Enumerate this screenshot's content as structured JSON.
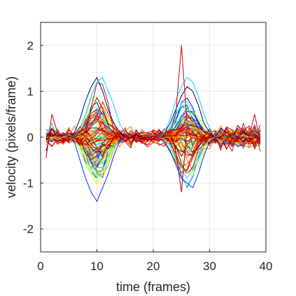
{
  "chart_data": {
    "type": "line",
    "title": "",
    "xlabel": "time (frames)",
    "ylabel": "velocity (pixels/frame)",
    "xlim": [
      0,
      40
    ],
    "ylim": [
      -2.5,
      2.5
    ],
    "xticks": [
      0,
      10,
      20,
      30,
      40
    ],
    "yticks": [
      -2,
      -1,
      0,
      1,
      2
    ],
    "grid": true,
    "legend": "none",
    "colormap": [
      "#00007f",
      "#0000ff",
      "#007fff",
      "#00ffff",
      "#7fff7f",
      "#ffff00",
      "#ff7f00",
      "#ff0000",
      "#7f0000"
    ],
    "series_count": 90,
    "x": [
      1,
      2,
      3,
      4,
      5,
      6,
      7,
      8,
      9,
      10,
      11,
      12,
      13,
      14,
      15,
      16,
      17,
      18,
      19,
      20,
      21,
      22,
      23,
      24,
      25,
      26,
      27,
      28,
      29,
      30,
      31,
      32,
      33,
      34,
      35,
      36,
      37,
      38,
      39
    ],
    "series": [
      {
        "values": [
          -0.3,
          0.2,
          0.05,
          0.0,
          0.02,
          0.1,
          0.4,
          0.8,
          1.1,
          1.3,
          1.0,
          0.6,
          0.3,
          0.1,
          0.0,
          0.0,
          0.05,
          0.0,
          0.0,
          0.0,
          0.02,
          0.1,
          0.3,
          0.6,
          0.9,
          1.1,
          1.0,
          0.7,
          0.3,
          0.1,
          0.0,
          0.2,
          0.1,
          0.0,
          0.0,
          0.1,
          0.05,
          0.0,
          0.0
        ]
      },
      {
        "values": [
          0.1,
          -0.1,
          0.0,
          0.05,
          0.0,
          -0.1,
          -0.5,
          -0.9,
          -1.2,
          -1.4,
          -1.1,
          -0.8,
          -0.4,
          -0.1,
          0.0,
          0.0,
          0.0,
          -0.05,
          0.0,
          0.0,
          0.0,
          -0.1,
          -0.3,
          -0.6,
          -0.9,
          -1.0,
          -1.1,
          -0.8,
          -0.4,
          -0.1,
          0.0,
          -0.2,
          0.0,
          0.05,
          0.0,
          -0.1,
          0.0,
          0.0,
          0.05
        ]
      },
      {
        "values": [
          0.05,
          0.3,
          0.0,
          0.0,
          0.05,
          0.0,
          0.2,
          0.5,
          0.9,
          1.2,
          1.3,
          1.0,
          0.7,
          0.3,
          0.1,
          0.0,
          0.0,
          0.0,
          0.0,
          0.05,
          0.0,
          0.1,
          0.4,
          0.8,
          1.1,
          1.3,
          1.2,
          0.9,
          0.5,
          0.2,
          0.0,
          0.1,
          0.0,
          0.0,
          0.05,
          0.0,
          0.0,
          0.1,
          0.0
        ]
      },
      {
        "values": [
          -0.1,
          0.0,
          -0.05,
          0.0,
          0.0,
          -0.05,
          -0.3,
          -0.6,
          -0.8,
          -0.9,
          -0.7,
          -0.5,
          -0.2,
          0.0,
          0.0,
          0.0,
          0.0,
          0.0,
          0.0,
          0.0,
          0.0,
          -0.05,
          -0.2,
          -0.5,
          -0.7,
          -0.8,
          -0.7,
          -0.5,
          -0.2,
          -0.05,
          0.0,
          -0.1,
          0.0,
          0.0,
          0.0,
          0.05,
          0.0,
          0.0,
          0.0
        ]
      },
      {
        "values": [
          0.0,
          0.0,
          0.0,
          0.0,
          0.0,
          0.0,
          0.0,
          0.0,
          0.0,
          0.0,
          0.0,
          0.0,
          0.0,
          0.0,
          0.0,
          0.0,
          0.0,
          0.0,
          0.0,
          0.0,
          0.0,
          0.0,
          0.0,
          0.0,
          0.0,
          0.0,
          0.0,
          0.0,
          0.0,
          0.0,
          0.0,
          0.0,
          0.0,
          0.0,
          0.0,
          0.0,
          0.0,
          0.0,
          0.0
        ]
      },
      {
        "values": [
          -0.45,
          0.5,
          0.1,
          -0.05,
          0.0,
          0.05,
          0.1,
          0.2,
          0.3,
          0.4,
          0.3,
          0.2,
          0.1,
          0.0,
          0.0,
          0.05,
          -0.05,
          0.0,
          0.0,
          0.0,
          0.05,
          0.0,
          0.1,
          0.5,
          2.0,
          0.3,
          -0.2,
          0.1,
          0.0,
          0.0,
          0.0,
          -0.05,
          0.0,
          0.0,
          -0.1,
          0.3,
          0.0,
          0.5,
          -0.1
        ]
      },
      {
        "values": [
          0.0,
          0.2,
          0.0,
          0.1,
          0.0,
          0.0,
          0.05,
          0.1,
          0.2,
          0.2,
          0.15,
          0.1,
          0.0,
          0.0,
          0.0,
          0.0,
          0.0,
          0.0,
          0.0,
          0.0,
          0.0,
          0.0,
          0.1,
          -0.3,
          -1.2,
          0.2,
          0.1,
          0.0,
          0.0,
          0.0,
          0.0,
          0.0,
          0.1,
          0.0,
          0.0,
          0.0,
          -0.1,
          0.0,
          0.0
        ]
      }
    ]
  }
}
